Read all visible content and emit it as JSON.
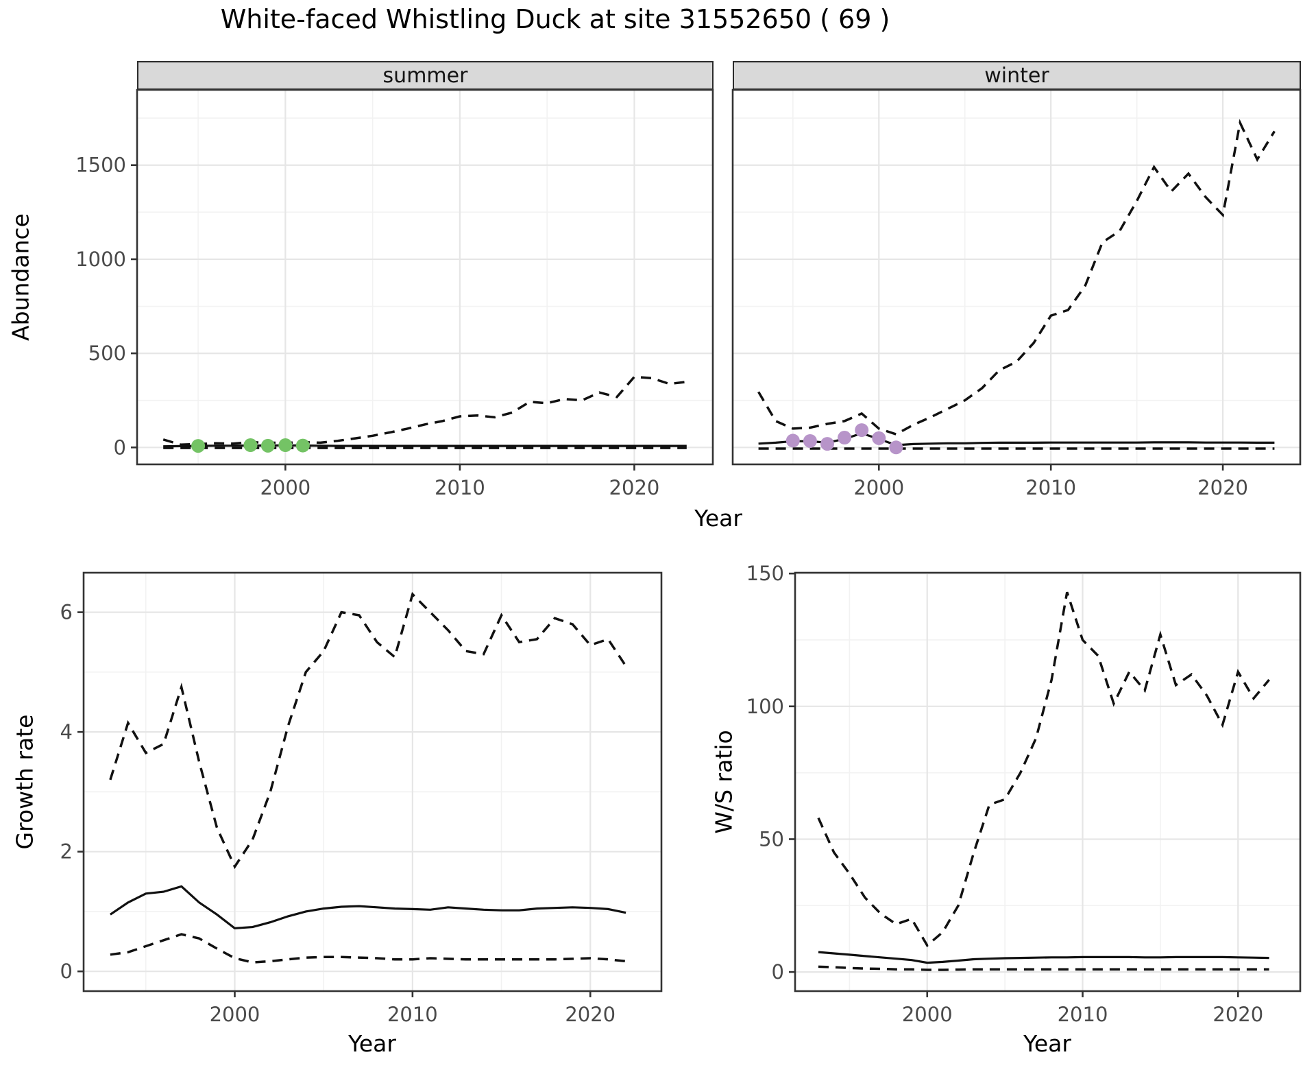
{
  "title": "White-faced Whistling Duck at site 31552650 ( 69 )",
  "colors": {
    "background": "#ffffff",
    "strip_fill": "#d9d9d9",
    "panel_border": "#333333",
    "grid_major": "#e6e6e6",
    "grid_minor": "#f2f2f2",
    "line": "#111111",
    "tick_text": "#4a4a4a",
    "summer_points": "#74c365",
    "winter_points": "#b794c9"
  },
  "chart_data": [
    {
      "id": "abundance_summer",
      "type": "line",
      "facet": "summer",
      "xlabel": "Year",
      "ylabel": "Abundance",
      "xlim": [
        1991.5,
        2024.5
      ],
      "ylim": [
        -90,
        1900
      ],
      "xticks": [
        2000,
        2010,
        2020
      ],
      "xticks_minor": [
        1995,
        2005,
        2015
      ],
      "yticks": [
        0,
        500,
        1000,
        1500
      ],
      "yticks_minor": [
        250,
        750,
        1250,
        1750
      ],
      "grid": true,
      "legend": "none",
      "years": [
        1993,
        1994,
        1995,
        1996,
        1997,
        1998,
        1999,
        2000,
        2001,
        2002,
        2003,
        2004,
        2005,
        2006,
        2007,
        2008,
        2009,
        2010,
        2011,
        2012,
        2013,
        2014,
        2015,
        2016,
        2017,
        2018,
        2019,
        2020,
        2021,
        2022,
        2023
      ],
      "series": [
        {
          "name": "upper_ci",
          "style": "dashed",
          "values": [
            42,
            15,
            18,
            22,
            20,
            28,
            25,
            24,
            28,
            25,
            35,
            48,
            62,
            80,
            100,
            122,
            140,
            165,
            170,
            160,
            185,
            242,
            235,
            257,
            250,
            292,
            268,
            375,
            368,
            338,
            348
          ]
        },
        {
          "name": "median",
          "style": "solid",
          "values": [
            6,
            7,
            8,
            9,
            9,
            10,
            10,
            11,
            10,
            9,
            8,
            8,
            8,
            8,
            8,
            8,
            8,
            8,
            8,
            8,
            8,
            8,
            8,
            8,
            8,
            8,
            8,
            8,
            8,
            8,
            8
          ]
        },
        {
          "name": "lower_ci",
          "style": "dashed",
          "values": [
            -3,
            -3,
            -3,
            -3,
            -3,
            -3,
            -3,
            -3,
            -3,
            -3,
            -3,
            -3,
            -3,
            -3,
            -3,
            -3,
            -3,
            -3,
            -3,
            -3,
            -3,
            -3,
            -3,
            -3,
            -3,
            -3,
            -3,
            -3,
            -3,
            -3,
            -3
          ]
        }
      ],
      "points": {
        "name": "observed_counts",
        "color": "#74c365",
        "years": [
          1995,
          1998,
          1999,
          2000,
          2001
        ],
        "values": [
          8,
          12,
          9,
          12,
          10
        ]
      }
    },
    {
      "id": "abundance_winter",
      "type": "line",
      "facet": "winter",
      "xlabel": "Year",
      "ylabel": "Abundance",
      "xlim": [
        1991.5,
        2024.5
      ],
      "ylim": [
        -90,
        1900
      ],
      "xticks": [
        2000,
        2010,
        2020
      ],
      "xticks_minor": [
        1995,
        2005,
        2015
      ],
      "yticks": [
        0,
        500,
        1000,
        1500
      ],
      "yticks_minor": [
        250,
        750,
        1250,
        1750
      ],
      "grid": true,
      "legend": "none",
      "years": [
        1993,
        1994,
        1995,
        1996,
        1997,
        1998,
        1999,
        2000,
        2001,
        2002,
        2003,
        2004,
        2005,
        2006,
        2007,
        2008,
        2009,
        2010,
        2011,
        2012,
        2013,
        2014,
        2015,
        2016,
        2017,
        2018,
        2019,
        2020,
        2021,
        2022,
        2023
      ],
      "series": [
        {
          "name": "upper_ci",
          "style": "dashed",
          "values": [
            295,
            140,
            100,
            105,
            125,
            140,
            180,
            100,
            70,
            120,
            160,
            205,
            250,
            315,
            410,
            455,
            555,
            700,
            730,
            860,
            1090,
            1150,
            1310,
            1490,
            1360,
            1455,
            1330,
            1235,
            1725,
            1530,
            1680
          ]
        },
        {
          "name": "median",
          "style": "solid",
          "values": [
            20,
            25,
            33,
            33,
            25,
            45,
            75,
            45,
            12,
            18,
            20,
            22,
            22,
            24,
            25,
            25,
            25,
            26,
            26,
            26,
            26,
            26,
            26,
            27,
            27,
            27,
            26,
            26,
            26,
            25,
            25
          ]
        },
        {
          "name": "lower_ci",
          "style": "dashed",
          "values": [
            -6,
            -6,
            -6,
            -6,
            -6,
            -6,
            -6,
            -6,
            -6,
            -6,
            -6,
            -6,
            -6,
            -6,
            -6,
            -6,
            -6,
            -6,
            -6,
            -6,
            -6,
            -6,
            -6,
            -6,
            -6,
            -6,
            -6,
            -6,
            -6,
            -6,
            -6
          ]
        }
      ],
      "points": {
        "name": "observed_counts",
        "color": "#b794c9",
        "years": [
          1995,
          1996,
          1997,
          1998,
          1999,
          2000,
          2001
        ],
        "values": [
          36,
          34,
          19,
          52,
          92,
          49,
          0
        ]
      }
    },
    {
      "id": "growth_rate",
      "type": "line",
      "facet": "",
      "xlabel": "Year",
      "ylabel": "Growth rate",
      "xlim": [
        1991.5,
        2024
      ],
      "ylim": [
        -0.33,
        6.66
      ],
      "xticks": [
        2000,
        2010,
        2020
      ],
      "xticks_minor": [
        1995,
        2005,
        2015
      ],
      "yticks": [
        0,
        2,
        4,
        6
      ],
      "yticks_minor": [
        1,
        3,
        5
      ],
      "grid": true,
      "legend": "none",
      "years": [
        1993,
        1994,
        1995,
        1996,
        1997,
        1998,
        1999,
        2000,
        2001,
        2002,
        2003,
        2004,
        2005,
        2006,
        2007,
        2008,
        2009,
        2010,
        2011,
        2012,
        2013,
        2014,
        2015,
        2016,
        2017,
        2018,
        2019,
        2020,
        2021,
        2022
      ],
      "series": [
        {
          "name": "upper_ci",
          "style": "dashed",
          "values": [
            3.2,
            4.15,
            3.65,
            3.8,
            4.75,
            3.5,
            2.4,
            1.75,
            2.2,
            3.0,
            4.1,
            5.0,
            5.35,
            6.0,
            5.95,
            5.5,
            5.25,
            6.3,
            6.0,
            5.7,
            5.35,
            5.3,
            5.95,
            5.5,
            5.55,
            5.9,
            5.8,
            5.45,
            5.55,
            5.1
          ]
        },
        {
          "name": "median",
          "style": "solid",
          "values": [
            0.95,
            1.15,
            1.3,
            1.33,
            1.42,
            1.15,
            0.95,
            0.72,
            0.74,
            0.82,
            0.92,
            1.0,
            1.05,
            1.08,
            1.09,
            1.07,
            1.05,
            1.04,
            1.03,
            1.07,
            1.05,
            1.03,
            1.02,
            1.02,
            1.05,
            1.06,
            1.07,
            1.06,
            1.04,
            0.98
          ]
        },
        {
          "name": "lower_ci",
          "style": "dashed",
          "values": [
            0.28,
            0.32,
            0.42,
            0.52,
            0.62,
            0.55,
            0.38,
            0.22,
            0.15,
            0.17,
            0.2,
            0.23,
            0.24,
            0.24,
            0.23,
            0.22,
            0.2,
            0.2,
            0.22,
            0.21,
            0.2,
            0.2,
            0.2,
            0.2,
            0.2,
            0.2,
            0.21,
            0.22,
            0.2,
            0.17
          ]
        }
      ]
    },
    {
      "id": "ws_ratio",
      "type": "line",
      "facet": "",
      "xlabel": "Year",
      "ylabel": "W/S ratio",
      "xlim": [
        1991.5,
        2024
      ],
      "ylim": [
        -7.2,
        150.3
      ],
      "xticks": [
        2000,
        2010,
        2020
      ],
      "xticks_minor": [
        1995,
        2005,
        2015
      ],
      "yticks": [
        0,
        50,
        100,
        150
      ],
      "yticks_minor": [
        25,
        75,
        125
      ],
      "grid": true,
      "legend": "none",
      "years": [
        1993,
        1994,
        1995,
        1996,
        1997,
        1998,
        1999,
        2000,
        2001,
        2002,
        2003,
        2004,
        2005,
        2006,
        2007,
        2008,
        2009,
        2010,
        2011,
        2012,
        2013,
        2014,
        2015,
        2016,
        2017,
        2018,
        2019,
        2020,
        2021,
        2022
      ],
      "series": [
        {
          "name": "upper_ci",
          "style": "dashed",
          "values": [
            58,
            45,
            37,
            28,
            22,
            18,
            20,
            10,
            15,
            25,
            45,
            63,
            65,
            75,
            88,
            110,
            143,
            125,
            119,
            101,
            113,
            106,
            127,
            108,
            112,
            104,
            93,
            113,
            103,
            110
          ]
        },
        {
          "name": "median",
          "style": "solid",
          "values": [
            7.5,
            7,
            6.5,
            6,
            5.5,
            5,
            4.5,
            3.5,
            3.8,
            4.3,
            4.8,
            5,
            5.2,
            5.3,
            5.4,
            5.5,
            5.5,
            5.6,
            5.6,
            5.6,
            5.6,
            5.5,
            5.5,
            5.6,
            5.6,
            5.6,
            5.6,
            5.5,
            5.4,
            5.3
          ]
        },
        {
          "name": "lower_ci",
          "style": "dashed",
          "values": [
            2,
            1.8,
            1.5,
            1.3,
            1.2,
            1,
            1,
            0.8,
            0.8,
            0.9,
            1,
            1,
            1,
            1,
            1,
            1,
            1,
            1,
            1,
            1,
            1,
            1,
            1,
            1,
            1,
            1,
            1,
            1,
            1,
            1
          ]
        }
      ]
    }
  ]
}
